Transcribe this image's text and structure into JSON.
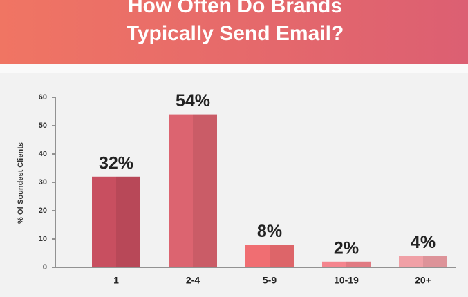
{
  "chart_data": {
    "type": "bar",
    "title": [
      "How Often Do Brands",
      "Typically Send Email?"
    ],
    "y_label": "% Of Soundest Clients",
    "categories": [
      "1",
      "2-4",
      "5-9",
      "10-19",
      "20+"
    ],
    "values": [
      32,
      54,
      8,
      2,
      4
    ],
    "value_labels": [
      "32%",
      "54%",
      "8%",
      "2%",
      "4%"
    ],
    "colors": [
      "#c84f60",
      "#dc6470",
      "#f06e72",
      "#f5858e",
      "#f0a0a6"
    ],
    "ylim": [
      0,
      60
    ],
    "yticks": [
      0,
      10,
      20,
      30,
      40,
      50,
      60
    ]
  }
}
